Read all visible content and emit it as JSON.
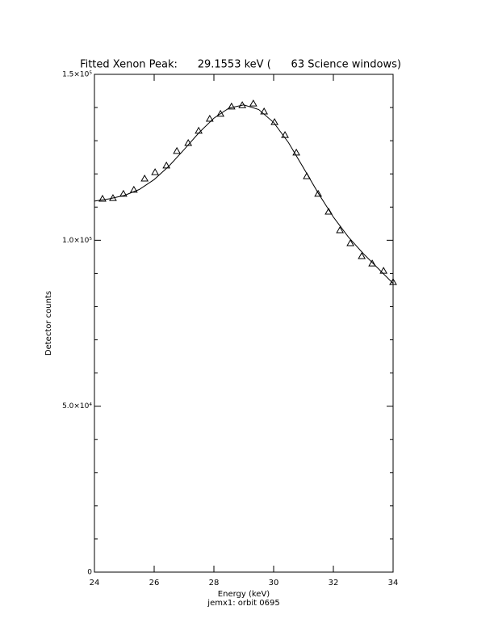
{
  "chart_data": {
    "type": "scatter-fit",
    "title": "Fitted Xenon Peak:      29.1553 keV (      63 Science windows)",
    "x_label": "Energy (keV)",
    "subtitle": "jemx1: orbit 0695",
    "y_label": "Detector counts",
    "xlim": [
      24,
      34
    ],
    "ylim": [
      0,
      150000
    ],
    "xticks": [
      24,
      26,
      28,
      30,
      32,
      34
    ],
    "yticks": [
      0,
      {
        "value": 50000,
        "label": "5.0×10⁴"
      },
      {
        "value": 100000,
        "label": "1.0×10⁵"
      },
      {
        "value": 150000,
        "label": "1.5×10⁵"
      }
    ],
    "yminorticks": [
      10000,
      20000,
      30000,
      40000,
      60000,
      70000,
      80000,
      90000,
      110000,
      120000,
      130000,
      140000
    ],
    "color": "#000000",
    "series": [
      {
        "marker": "triangle",
        "x": [
          24.27,
          24.62,
          24.97,
          25.32,
          25.68,
          26.03,
          26.41,
          26.76,
          27.14,
          27.49,
          27.86,
          28.22,
          28.59,
          28.95,
          29.32,
          29.68,
          30.03,
          30.38,
          30.76,
          31.11,
          31.49,
          31.84,
          32.22,
          32.57,
          32.95,
          33.3,
          33.68,
          34.0
        ],
        "values": [
          112500,
          112700,
          114000,
          115200,
          118600,
          120500,
          122500,
          126900,
          129300,
          133000,
          136600,
          138100,
          140300,
          140700,
          141200,
          138800,
          135600,
          131700,
          126400,
          119300,
          114000,
          108600,
          103000,
          99100,
          95200,
          93000,
          90800,
          87400
        ]
      },
      {
        "marker": "line",
        "x": [
          24,
          24.5,
          25,
          25.5,
          26,
          26.5,
          27,
          27.5,
          28,
          28.5,
          29,
          29.5,
          30,
          30.5,
          31,
          31.5,
          32,
          32.5,
          33,
          33.5,
          34
        ],
        "values": [
          111800,
          112500,
          113500,
          115300,
          118300,
          122400,
          127300,
          132400,
          136800,
          139800,
          140800,
          139400,
          135500,
          129400,
          121800,
          114100,
          107000,
          101000,
          96000,
          91500,
          87000
        ]
      }
    ]
  }
}
